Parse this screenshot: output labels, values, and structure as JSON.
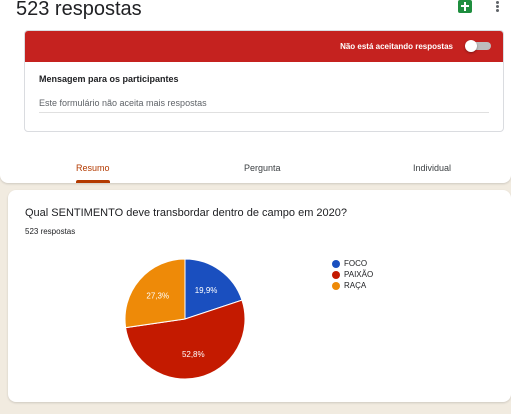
{
  "header": {
    "response_count_title": "523 respostas"
  },
  "accepting": {
    "status_label": "Não está aceitando respostas",
    "message_label": "Mensagem para os participantes",
    "message_text": "Este formulário não aceita mais respostas"
  },
  "tabs": [
    {
      "label": "Resumo",
      "active": true
    },
    {
      "label": "Pergunta",
      "active": false
    },
    {
      "label": "Individual",
      "active": false
    }
  ],
  "question": {
    "title": "Qual SENTIMENTO deve transbordar dentro de campo em 2020?",
    "response_count": "523 respostas"
  },
  "colors": {
    "accent_red": "#c5221f",
    "tab_active": "#b33a00",
    "foco": "#1a4fbf",
    "paixao": "#c41a00",
    "raca": "#ee8a08"
  },
  "chart_data": {
    "type": "pie",
    "slices": [
      {
        "name": "FOCO",
        "value": 19.9,
        "label": "19,9%",
        "color": "#1a4fbf"
      },
      {
        "name": "PAIXÃO",
        "value": 52.8,
        "label": "52,8%",
        "color": "#c41a00"
      },
      {
        "name": "RAÇA",
        "value": 27.3,
        "label": "27,3%",
        "color": "#ee8a08"
      }
    ],
    "legend_position": "right"
  }
}
